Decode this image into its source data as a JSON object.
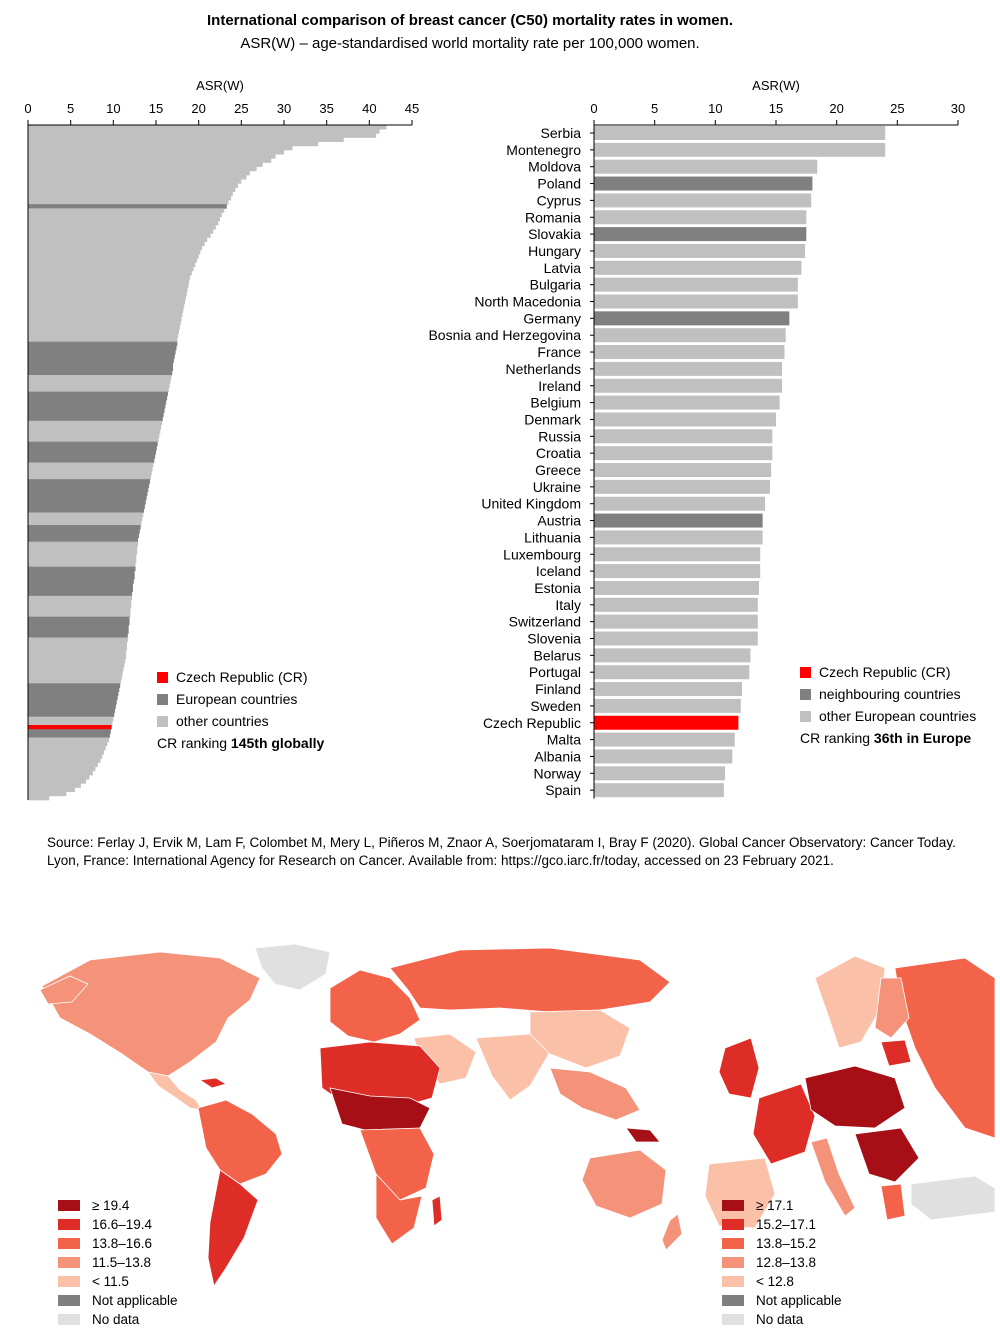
{
  "title": "International comparison of breast cancer (C50) mortality rates in women.",
  "subtitle": "ASR(W) – age-standardised world mortality rate per 100,000 women.",
  "colors": {
    "cz": "#ff0000",
    "europe": "#808080",
    "other": "#c0c0c0",
    "map_scale": [
      "#a50f15",
      "#de2d26",
      "#f2634a",
      "#f4937a",
      "#fbc0a8",
      "#7f7f7f",
      "#e0e0e0"
    ]
  },
  "chart_data": [
    {
      "type": "bar",
      "orientation": "horizontal",
      "xlabel": "ASR(W)",
      "xlim": [
        0,
        45
      ],
      "xticks": [
        "0",
        "5",
        "10",
        "15",
        "20",
        "25",
        "30",
        "35",
        "40",
        "45"
      ],
      "values": [
        42,
        41.2,
        40.8,
        37,
        34,
        31,
        30,
        29,
        28.5,
        27.5,
        26.8,
        26,
        25.6,
        25,
        24.6,
        24.3,
        24,
        23.8,
        23.5,
        23.3,
        23,
        22.7,
        22.5,
        22.3,
        22,
        21.7,
        21.4,
        21,
        20.7,
        20.4,
        20.2,
        20,
        19.8,
        19.6,
        19.4,
        19.2,
        19,
        18.9,
        18.8,
        18.7,
        18.6,
        18.5,
        18.4,
        18.3,
        18.2,
        18.1,
        18,
        17.9,
        17.8,
        17.7,
        17.6,
        17.5,
        17.5,
        17.4,
        17.3,
        17.2,
        17.1,
        17,
        17,
        16.9,
        16.8,
        16.7,
        16.6,
        16.5,
        16.4,
        16.3,
        16.2,
        16.1,
        16,
        15.9,
        15.8,
        15.7,
        15.6,
        15.5,
        15.4,
        15.3,
        15.2,
        15.1,
        15,
        14.9,
        14.8,
        14.7,
        14.6,
        14.5,
        14.4,
        14.3,
        14.2,
        14.1,
        14,
        13.9,
        13.8,
        13.7,
        13.6,
        13.5,
        13.4,
        13.3,
        13.2,
        13.1,
        13,
        12.9,
        12.9,
        12.8,
        12.8,
        12.7,
        12.7,
        12.6,
        12.6,
        12.5,
        12.5,
        12.4,
        12.3,
        12.3,
        12.2,
        12.2,
        12.1,
        12.1,
        12,
        12,
        11.9,
        11.9,
        11.8,
        11.8,
        11.7,
        11.7,
        11.6,
        11.6,
        11.5,
        11.5,
        11.4,
        11.3,
        11.2,
        11.1,
        11,
        10.9,
        10.8,
        10.7,
        10.6,
        10.5,
        10.4,
        10.3,
        10.2,
        10.1,
        10,
        9.9,
        9.8,
        9.7,
        9.6,
        9.5,
        9.3,
        9.1,
        8.9,
        8.7,
        8.5,
        8.2,
        7.9,
        7.6,
        7.2,
        6.8,
        6.2,
        5.5,
        4.5,
        2.5
      ],
      "european_ranks": [
        20,
        53,
        54,
        55,
        56,
        57,
        58,
        59,
        60,
        65,
        66,
        67,
        68,
        69,
        70,
        71,
        77,
        78,
        79,
        80,
        81,
        86,
        87,
        88,
        89,
        90,
        91,
        92,
        93,
        97,
        98,
        99,
        100,
        107,
        108,
        109,
        110,
        111,
        112,
        113,
        119,
        120,
        121,
        122,
        123,
        135,
        136,
        137,
        138,
        139,
        140,
        141,
        142,
        146,
        147
      ],
      "cz_rank": 145,
      "legend": [
        "Czech Republic (CR)",
        "European countries",
        "other countries"
      ],
      "note_prefix": "CR ranking ",
      "note_bold": "145th globally"
    },
    {
      "type": "bar",
      "orientation": "horizontal",
      "xlabel": "ASR(W)",
      "xlim": [
        0,
        30
      ],
      "xticks": [
        "0",
        "5",
        "10",
        "15",
        "20",
        "25",
        "30"
      ],
      "categories": [
        "Serbia",
        "Montenegro",
        "Moldova",
        "Poland",
        "Cyprus",
        "Romania",
        "Slovakia",
        "Hungary",
        "Latvia",
        "Bulgaria",
        "North Macedonia",
        "Germany",
        "Bosnia and Herzegovina",
        "France",
        "Netherlands",
        "Ireland",
        "Belgium",
        "Denmark",
        "Russia",
        "Croatia",
        "Greece",
        "Ukraine",
        "United Kingdom",
        "Austria",
        "Lithuania",
        "Luxembourg",
        "Iceland",
        "Estonia",
        "Italy",
        "Switzerland",
        "Slovenia",
        "Belarus",
        "Portugal",
        "Finland",
        "Sweden",
        "Czech Republic",
        "Malta",
        "Albania",
        "Norway",
        "Spain"
      ],
      "values": [
        24.0,
        24.0,
        18.4,
        18.0,
        17.9,
        17.5,
        17.5,
        17.4,
        17.1,
        16.8,
        16.8,
        16.1,
        15.8,
        15.7,
        15.5,
        15.5,
        15.3,
        15.0,
        14.7,
        14.7,
        14.6,
        14.5,
        14.1,
        13.9,
        13.9,
        13.7,
        13.7,
        13.6,
        13.5,
        13.5,
        13.5,
        12.9,
        12.8,
        12.2,
        12.1,
        11.9,
        11.6,
        11.4,
        10.8,
        10.7
      ],
      "groups": [
        "other",
        "other",
        "other",
        "neighbour",
        "other",
        "other",
        "neighbour",
        "other",
        "other",
        "other",
        "other",
        "neighbour",
        "other",
        "other",
        "other",
        "other",
        "other",
        "other",
        "other",
        "other",
        "other",
        "other",
        "other",
        "neighbour",
        "other",
        "other",
        "other",
        "other",
        "other",
        "other",
        "other",
        "other",
        "other",
        "other",
        "other",
        "cz",
        "other",
        "other",
        "other",
        "other"
      ],
      "legend": [
        "Czech Republic (CR)",
        "neighbouring countries",
        "other European countries"
      ],
      "note_prefix": "CR ranking ",
      "note_bold": "36th in Europe"
    }
  ],
  "source": "Source: Ferlay J, Ervik M, Lam F, Colombet M, Mery L, Piñeros M, Znaor A, Soerjomataram I, Bray F (2020). Global Cancer Observatory: Cancer Today. Lyon, France: International Agency for Research on Cancer. Available from: https://gco.iarc.fr/today, accessed on 23 February 2021.",
  "world_legend": [
    "≥ 19.4",
    "16.6–19.4",
    "13.8–16.6",
    "11.5–13.8",
    "< 11.5",
    "Not applicable",
    "No data"
  ],
  "europe_legend": [
    "≥ 17.1",
    "15.2–17.1",
    "13.8–15.2",
    "12.8–13.8",
    "< 12.8",
    "Not applicable",
    "No data"
  ]
}
